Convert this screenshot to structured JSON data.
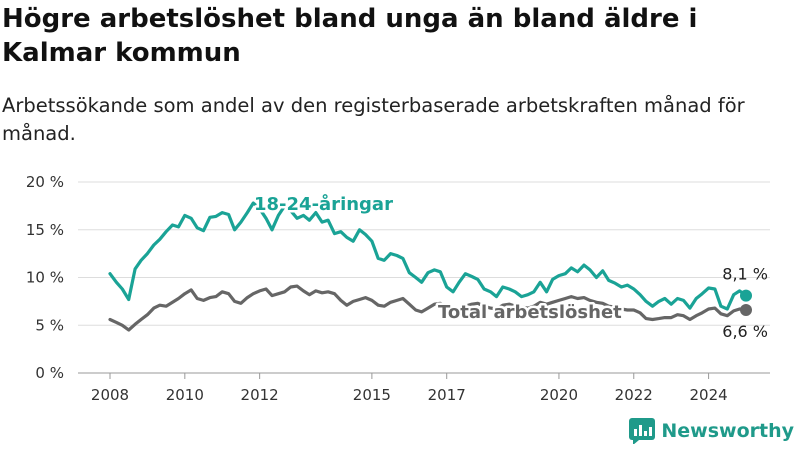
{
  "title": "Högre arbetslöshet bland unga än bland äldre i Kalmar kommun",
  "subtitle": "Arbetssökande som andel av den registerbaserade arbetskraften månad för månad.",
  "brand": "Newsworthy",
  "colors": {
    "youth": "#1aa396",
    "total": "#666666",
    "grid": "#dddddd",
    "brand": "#1f9a8a"
  },
  "chart_data": {
    "type": "line",
    "title": "Högre arbetslöshet bland unga än bland äldre i Kalmar kommun",
    "subtitle": "Arbetssökande som andel av den registerbaserade arbetskraften månad för månad.",
    "xlabel": "",
    "ylabel": "",
    "xlim": [
      2008,
      2025
    ],
    "ylim": [
      0,
      20
    ],
    "y_ticks": [
      "0 %",
      "5 %",
      "10 %",
      "15 %",
      "20 %"
    ],
    "x_ticks": [
      "2008",
      "2010",
      "2012",
      "2015",
      "2017",
      "2020",
      "2022",
      "2024"
    ],
    "grid": true,
    "series": [
      {
        "name": "18-24-åringar",
        "end_label": "8,1 %",
        "points": [
          [
            2008.0,
            10.4
          ],
          [
            2008.17,
            9.5
          ],
          [
            2008.33,
            8.8
          ],
          [
            2008.5,
            7.7
          ],
          [
            2008.67,
            10.9
          ],
          [
            2008.83,
            11.8
          ],
          [
            2009.0,
            12.5
          ],
          [
            2009.17,
            13.4
          ],
          [
            2009.33,
            14.0
          ],
          [
            2009.5,
            14.8
          ],
          [
            2009.67,
            15.5
          ],
          [
            2009.83,
            15.3
          ],
          [
            2010.0,
            16.5
          ],
          [
            2010.17,
            16.2
          ],
          [
            2010.33,
            15.2
          ],
          [
            2010.5,
            14.9
          ],
          [
            2010.67,
            16.3
          ],
          [
            2010.83,
            16.4
          ],
          [
            2011.0,
            16.8
          ],
          [
            2011.17,
            16.6
          ],
          [
            2011.33,
            15.0
          ],
          [
            2011.5,
            15.8
          ],
          [
            2011.67,
            16.8
          ],
          [
            2011.83,
            17.8
          ],
          [
            2012.0,
            17.2
          ],
          [
            2012.17,
            16.2
          ],
          [
            2012.33,
            15.0
          ],
          [
            2012.5,
            16.5
          ],
          [
            2012.67,
            17.5
          ],
          [
            2012.83,
            17.0
          ],
          [
            2013.0,
            16.2
          ],
          [
            2013.17,
            16.5
          ],
          [
            2013.33,
            16.0
          ],
          [
            2013.5,
            16.8
          ],
          [
            2013.67,
            15.8
          ],
          [
            2013.83,
            16.0
          ],
          [
            2014.0,
            14.6
          ],
          [
            2014.17,
            14.8
          ],
          [
            2014.33,
            14.2
          ],
          [
            2014.5,
            13.8
          ],
          [
            2014.67,
            15.0
          ],
          [
            2014.83,
            14.5
          ],
          [
            2015.0,
            13.8
          ],
          [
            2015.17,
            12.0
          ],
          [
            2015.33,
            11.8
          ],
          [
            2015.5,
            12.5
          ],
          [
            2015.67,
            12.3
          ],
          [
            2015.83,
            12.0
          ],
          [
            2016.0,
            10.5
          ],
          [
            2016.17,
            10.0
          ],
          [
            2016.33,
            9.5
          ],
          [
            2016.5,
            10.5
          ],
          [
            2016.67,
            10.8
          ],
          [
            2016.83,
            10.6
          ],
          [
            2017.0,
            9.0
          ],
          [
            2017.17,
            8.5
          ],
          [
            2017.33,
            9.5
          ],
          [
            2017.5,
            10.4
          ],
          [
            2017.67,
            10.1
          ],
          [
            2017.83,
            9.8
          ],
          [
            2018.0,
            8.8
          ],
          [
            2018.17,
            8.5
          ],
          [
            2018.33,
            8.0
          ],
          [
            2018.5,
            9.0
          ],
          [
            2018.67,
            8.8
          ],
          [
            2018.83,
            8.5
          ],
          [
            2019.0,
            8.0
          ],
          [
            2019.17,
            8.2
          ],
          [
            2019.33,
            8.5
          ],
          [
            2019.5,
            9.5
          ],
          [
            2019.67,
            8.5
          ],
          [
            2019.83,
            9.8
          ],
          [
            2020.0,
            10.2
          ],
          [
            2020.17,
            10.4
          ],
          [
            2020.33,
            11.0
          ],
          [
            2020.5,
            10.6
          ],
          [
            2020.67,
            11.3
          ],
          [
            2020.83,
            10.8
          ],
          [
            2021.0,
            10.0
          ],
          [
            2021.17,
            10.7
          ],
          [
            2021.33,
            9.7
          ],
          [
            2021.5,
            9.4
          ],
          [
            2021.67,
            9.0
          ],
          [
            2021.83,
            9.2
          ],
          [
            2022.0,
            8.8
          ],
          [
            2022.17,
            8.2
          ],
          [
            2022.33,
            7.5
          ],
          [
            2022.5,
            7.0
          ],
          [
            2022.67,
            7.5
          ],
          [
            2022.83,
            7.8
          ],
          [
            2023.0,
            7.2
          ],
          [
            2023.17,
            7.8
          ],
          [
            2023.33,
            7.6
          ],
          [
            2023.5,
            6.8
          ],
          [
            2023.67,
            7.8
          ],
          [
            2023.83,
            8.3
          ],
          [
            2024.0,
            8.9
          ],
          [
            2024.17,
            8.8
          ],
          [
            2024.33,
            7.0
          ],
          [
            2024.5,
            6.7
          ],
          [
            2024.67,
            8.2
          ],
          [
            2024.83,
            8.6
          ],
          [
            2025.0,
            8.1
          ]
        ]
      },
      {
        "name": "Total arbetslöshet",
        "end_label": "6,6 %",
        "points": [
          [
            2008.0,
            5.6
          ],
          [
            2008.17,
            5.3
          ],
          [
            2008.33,
            5.0
          ],
          [
            2008.5,
            4.5
          ],
          [
            2008.67,
            5.1
          ],
          [
            2008.83,
            5.6
          ],
          [
            2009.0,
            6.1
          ],
          [
            2009.17,
            6.8
          ],
          [
            2009.33,
            7.1
          ],
          [
            2009.5,
            7.0
          ],
          [
            2009.67,
            7.4
          ],
          [
            2009.83,
            7.8
          ],
          [
            2010.0,
            8.3
          ],
          [
            2010.17,
            8.7
          ],
          [
            2010.33,
            7.8
          ],
          [
            2010.5,
            7.6
          ],
          [
            2010.67,
            7.9
          ],
          [
            2010.83,
            8.0
          ],
          [
            2011.0,
            8.5
          ],
          [
            2011.17,
            8.3
          ],
          [
            2011.33,
            7.5
          ],
          [
            2011.5,
            7.3
          ],
          [
            2011.67,
            7.9
          ],
          [
            2011.83,
            8.3
          ],
          [
            2012.0,
            8.6
          ],
          [
            2012.17,
            8.8
          ],
          [
            2012.33,
            8.1
          ],
          [
            2012.5,
            8.3
          ],
          [
            2012.67,
            8.5
          ],
          [
            2012.83,
            9.0
          ],
          [
            2013.0,
            9.1
          ],
          [
            2013.17,
            8.6
          ],
          [
            2013.33,
            8.2
          ],
          [
            2013.5,
            8.6
          ],
          [
            2013.67,
            8.4
          ],
          [
            2013.83,
            8.5
          ],
          [
            2014.0,
            8.3
          ],
          [
            2014.17,
            7.6
          ],
          [
            2014.33,
            7.1
          ],
          [
            2014.5,
            7.5
          ],
          [
            2014.67,
            7.7
          ],
          [
            2014.83,
            7.9
          ],
          [
            2015.0,
            7.6
          ],
          [
            2015.17,
            7.1
          ],
          [
            2015.33,
            7.0
          ],
          [
            2015.5,
            7.4
          ],
          [
            2015.67,
            7.6
          ],
          [
            2015.83,
            7.8
          ],
          [
            2016.0,
            7.2
          ],
          [
            2016.17,
            6.6
          ],
          [
            2016.33,
            6.4
          ],
          [
            2016.5,
            6.8
          ],
          [
            2016.67,
            7.2
          ],
          [
            2016.83,
            7.3
          ],
          [
            2017.0,
            7.0
          ],
          [
            2017.17,
            6.8
          ],
          [
            2017.33,
            6.6
          ],
          [
            2017.5,
            7.0
          ],
          [
            2017.67,
            7.2
          ],
          [
            2017.83,
            7.3
          ],
          [
            2018.0,
            7.0
          ],
          [
            2018.17,
            6.8
          ],
          [
            2018.33,
            6.7
          ],
          [
            2018.5,
            7.1
          ],
          [
            2018.67,
            7.2
          ],
          [
            2018.83,
            7.0
          ],
          [
            2019.0,
            6.9
          ],
          [
            2019.17,
            6.8
          ],
          [
            2019.33,
            7.0
          ],
          [
            2019.5,
            7.4
          ],
          [
            2019.67,
            7.2
          ],
          [
            2019.83,
            7.4
          ],
          [
            2020.0,
            7.6
          ],
          [
            2020.17,
            7.8
          ],
          [
            2020.33,
            8.0
          ],
          [
            2020.5,
            7.8
          ],
          [
            2020.67,
            7.9
          ],
          [
            2020.83,
            7.6
          ],
          [
            2021.0,
            7.4
          ],
          [
            2021.17,
            7.3
          ],
          [
            2021.33,
            7.0
          ],
          [
            2021.5,
            6.9
          ],
          [
            2021.67,
            6.7
          ],
          [
            2021.83,
            6.6
          ],
          [
            2022.0,
            6.6
          ],
          [
            2022.17,
            6.3
          ],
          [
            2022.33,
            5.7
          ],
          [
            2022.5,
            5.6
          ],
          [
            2022.67,
            5.7
          ],
          [
            2022.83,
            5.8
          ],
          [
            2023.0,
            5.8
          ],
          [
            2023.17,
            6.1
          ],
          [
            2023.33,
            6.0
          ],
          [
            2023.5,
            5.6
          ],
          [
            2023.67,
            6.0
          ],
          [
            2023.83,
            6.3
          ],
          [
            2024.0,
            6.7
          ],
          [
            2024.17,
            6.8
          ],
          [
            2024.33,
            6.2
          ],
          [
            2024.5,
            6.0
          ],
          [
            2024.67,
            6.5
          ],
          [
            2024.83,
            6.7
          ],
          [
            2025.0,
            6.6
          ]
        ]
      }
    ]
  }
}
